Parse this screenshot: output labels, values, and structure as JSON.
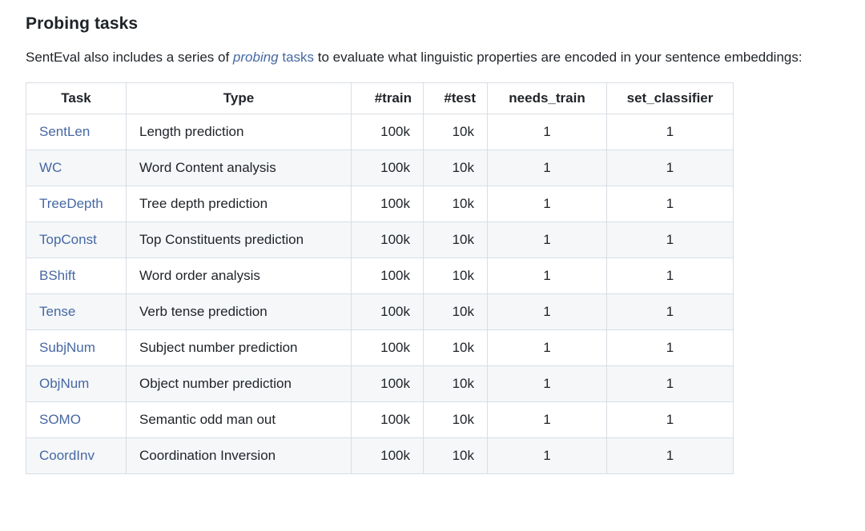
{
  "page": {
    "heading": "Probing tasks",
    "intro": {
      "before_link": "SentEval also includes a series of ",
      "link_text_italic": "probing",
      "link_text_regular": " tasks",
      "after_link": " to evaluate what linguistic properties are encoded in your sentence embeddings:"
    }
  },
  "colors": {
    "link_blue": "#4668a3",
    "body_text": "#1f2328",
    "table_border": "#d9dee4",
    "row_alt_background": "#f5f7f9"
  },
  "table": {
    "headers": [
      "Task",
      "Type",
      "#train",
      "#test",
      "needs_train",
      "set_classifier"
    ],
    "rows": [
      {
        "task": "SentLen",
        "type": "Length prediction",
        "train": "100k",
        "test": "10k",
        "needs_train": "1",
        "set_classifier": "1"
      },
      {
        "task": "WC",
        "type": "Word Content analysis",
        "train": "100k",
        "test": "10k",
        "needs_train": "1",
        "set_classifier": "1"
      },
      {
        "task": "TreeDepth",
        "type": "Tree depth prediction",
        "train": "100k",
        "test": "10k",
        "needs_train": "1",
        "set_classifier": "1"
      },
      {
        "task": "TopConst",
        "type": "Top Constituents prediction",
        "train": "100k",
        "test": "10k",
        "needs_train": "1",
        "set_classifier": "1"
      },
      {
        "task": "BShift",
        "type": "Word order analysis",
        "train": "100k",
        "test": "10k",
        "needs_train": "1",
        "set_classifier": "1"
      },
      {
        "task": "Tense",
        "type": "Verb tense prediction",
        "train": "100k",
        "test": "10k",
        "needs_train": "1",
        "set_classifier": "1"
      },
      {
        "task": "SubjNum",
        "type": "Subject number prediction",
        "train": "100k",
        "test": "10k",
        "needs_train": "1",
        "set_classifier": "1"
      },
      {
        "task": "ObjNum",
        "type": "Object number prediction",
        "train": "100k",
        "test": "10k",
        "needs_train": "1",
        "set_classifier": "1"
      },
      {
        "task": "SOMO",
        "type": "Semantic odd man out",
        "train": "100k",
        "test": "10k",
        "needs_train": "1",
        "set_classifier": "1"
      },
      {
        "task": "CoordInv",
        "type": "Coordination Inversion",
        "train": "100k",
        "test": "10k",
        "needs_train": "1",
        "set_classifier": "1"
      }
    ]
  }
}
